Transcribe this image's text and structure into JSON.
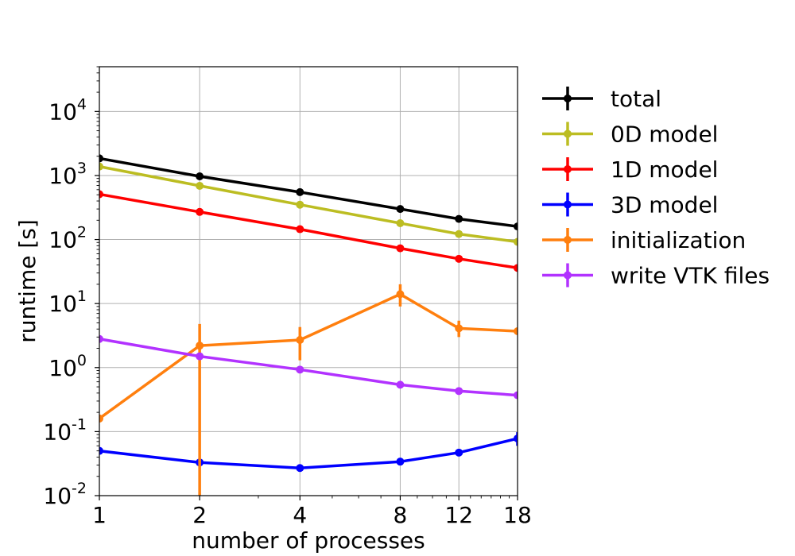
{
  "chart_data": {
    "type": "line",
    "title": "",
    "xlabel": "number of processes",
    "ylabel": "runtime [s]",
    "x_scale": "log",
    "y_scale": "log",
    "xlim": [
      1,
      18
    ],
    "ylim": [
      0.01,
      50000
    ],
    "grid": true,
    "legend_position": "outside-right",
    "x": [
      1,
      2,
      4,
      8,
      12,
      18
    ],
    "x_ticks": [
      1,
      2,
      4,
      8,
      12,
      18
    ],
    "x_tick_labels": [
      "1",
      "2",
      "4",
      "8",
      "12",
      "18"
    ],
    "y_ticks": [
      0.01,
      0.1,
      1,
      10,
      100,
      1000,
      10000
    ],
    "y_tick_exponents": [
      "-2",
      "-1",
      "0",
      "1",
      "2",
      "3",
      "4"
    ],
    "y_tick_base": "10",
    "series": [
      {
        "name": "total",
        "color": "#000000",
        "values": [
          1850,
          970,
          550,
          300,
          210,
          160
        ],
        "err_low": [
          0,
          0,
          0,
          0,
          0,
          0
        ],
        "err_high": [
          0,
          0,
          0,
          0,
          0,
          0
        ]
      },
      {
        "name": "0D model",
        "color": "#bcbd22",
        "values": [
          1380,
          690,
          350,
          180,
          122,
          92
        ],
        "err_low": [
          0,
          0,
          0,
          0,
          0,
          0
        ],
        "err_high": [
          0,
          0,
          0,
          0,
          0,
          0
        ]
      },
      {
        "name": "1D model",
        "color": "#ff0000",
        "values": [
          510,
          270,
          145,
          73,
          50,
          36
        ],
        "err_low": [
          0,
          0,
          0,
          0,
          0,
          0
        ],
        "err_high": [
          0,
          0,
          0,
          0,
          0,
          0
        ]
      },
      {
        "name": "3D model",
        "color": "#0000ff",
        "values": [
          0.05,
          0.033,
          0.027,
          0.034,
          0.047,
          0.078
        ],
        "err_low": [
          0,
          0,
          0,
          0,
          0,
          0.018
        ],
        "err_high": [
          0,
          0,
          0,
          0,
          0,
          0.02
        ]
      },
      {
        "name": "initialization",
        "color": "#ff7f0e",
        "values": [
          0.16,
          2.2,
          2.7,
          14,
          4.1,
          3.7
        ],
        "err_low": [
          0,
          2.19,
          1.4,
          5,
          1.1,
          0.4
        ],
        "err_high": [
          0,
          2.6,
          1.6,
          6,
          1.3,
          0.5
        ]
      },
      {
        "name": "write VTK files",
        "color": "#b232ff",
        "values": [
          2.8,
          1.5,
          0.93,
          0.54,
          0.43,
          0.37
        ],
        "err_low": [
          0,
          0,
          0,
          0,
          0,
          0
        ],
        "err_high": [
          0,
          0,
          0,
          0,
          0,
          0
        ]
      }
    ]
  }
}
